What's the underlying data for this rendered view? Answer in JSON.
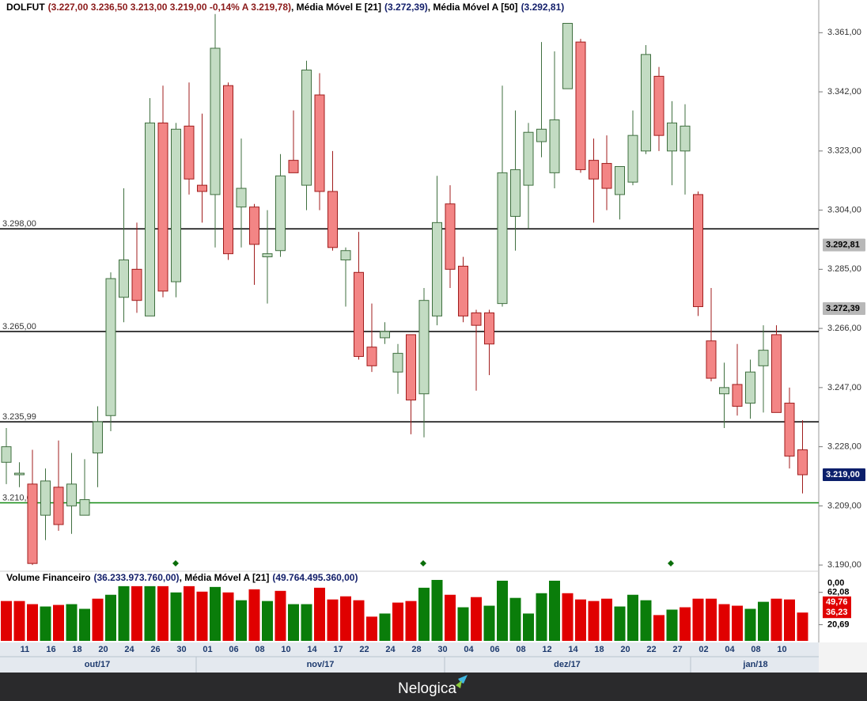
{
  "chart_data": {
    "type": "candlestick",
    "title_parts": [
      {
        "text": "DOLFUT",
        "color": "#000000"
      },
      {
        "text": "(3.227,00  3.236,50  3.213,00  3.219,00  -0,14%  A 3.219,78)",
        "color": "#8b1a1a"
      },
      {
        "text": ", Média Móvel E [21]",
        "color": "#000000"
      },
      {
        "text": "(3.272,39)",
        "color": "#14206b"
      },
      {
        "text": ", Média Móvel A [50]",
        "color": "#000000"
      },
      {
        "text": "(3.292,81)",
        "color": "#14206b"
      }
    ],
    "categories": [
      null,
      "11",
      null,
      "16",
      null,
      "18",
      null,
      "20",
      null,
      "24",
      null,
      "26",
      null,
      "30",
      null,
      "01",
      null,
      "06",
      null,
      "08",
      null,
      "10",
      null,
      "14",
      null,
      "17",
      null,
      "22",
      null,
      "24",
      null,
      "28",
      null,
      "30",
      null,
      "04",
      null,
      "06",
      null,
      "08",
      null,
      "12",
      null,
      "14",
      null,
      "18",
      null,
      "20",
      null,
      "22",
      null,
      "27",
      null,
      "02",
      null,
      "04",
      null,
      "08",
      null,
      "10",
      null,
      null
    ],
    "months": [
      "out/17",
      "nov/17",
      "dez/17",
      "jan/18"
    ],
    "open": [
      3223,
      3219,
      3216,
      3206,
      3215,
      3209,
      3206,
      3226,
      3238,
      3276,
      3285,
      3270,
      3332,
      3281,
      3331,
      3312,
      3309,
      3344,
      3305,
      3305,
      3289,
      3291,
      3320,
      3312,
      3341,
      3310,
      3288,
      3284,
      3260,
      3263,
      3252,
      3264,
      3245,
      3270,
      3306,
      3286,
      3271,
      3271,
      3274,
      3302,
      3312,
      3326,
      3316,
      3343,
      3358,
      3320,
      3319,
      3309,
      3313,
      3323,
      3347,
      3323,
      3323,
      3309,
      3262,
      3245,
      3248,
      3242,
      3254,
      3264,
      3242,
      3227
    ],
    "high": [
      3234,
      3223,
      3227,
      3221,
      3230,
      3226,
      3224,
      3241,
      3284,
      3311,
      3300,
      3340,
      3344,
      3332,
      3345,
      3335,
      3367,
      3345,
      3327,
      3306,
      3304,
      3322,
      3336,
      3352,
      3348,
      3323,
      3292,
      3297,
      3274,
      3268,
      3261,
      3264,
      3279,
      3315,
      3312,
      3289,
      3272,
      3272,
      3344,
      3336,
      3332,
      3358,
      3355,
      3364,
      3359,
      3327,
      3328,
      3318,
      3336,
      3357,
      3350,
      3339,
      3338,
      3310,
      3279,
      3255,
      3261,
      3256,
      3267,
      3267,
      3247,
      3236.5
    ],
    "low": [
      3216,
      3215,
      3190,
      3198,
      3201,
      3200,
      3206,
      3215,
      3233,
      3268,
      3271,
      3270,
      3276,
      3276,
      3309,
      3300,
      3292,
      3288,
      3292,
      3280,
      3274,
      3289,
      3316,
      3304,
      3304,
      3291,
      3273,
      3256,
      3252,
      3261,
      3245,
      3232,
      3231,
      3267,
      3279,
      3268,
      3246,
      3251,
      3273,
      3291,
      3298,
      3321,
      3311,
      3343,
      3316,
      3300,
      3304,
      3301,
      3312,
      3322,
      3323,
      3312,
      3309,
      3270,
      3249,
      3234,
      3238,
      3237,
      3239,
      3239,
      3221,
      3213
    ],
    "close": [
      3228,
      3219.5,
      3190.5,
      3217,
      3203,
      3216,
      3211,
      3236,
      3282,
      3288,
      3275,
      3332,
      3278,
      3330,
      3314,
      3310,
      3356,
      3290,
      3311,
      3293,
      3290,
      3315,
      3316,
      3349,
      3310,
      3292,
      3291,
      3257,
      3254,
      3265,
      3258,
      3243,
      3275,
      3300,
      3285,
      3270,
      3267,
      3261,
      3316,
      3317,
      3329,
      3330,
      3333,
      3364,
      3317,
      3314,
      3311,
      3318,
      3328,
      3354,
      3328,
      3332,
      3331,
      3273,
      3250,
      3247,
      3241,
      3252,
      3259,
      3239,
      3225,
      3219
    ],
    "colors": {
      "up": "#c3dcc3",
      "up_edge": "#3f6f3f",
      "down": "#f38585",
      "down_edge": "#a01c1c"
    },
    "ylim": [
      3188,
      3371.5
    ],
    "yticks": [
      {
        "value": 3361,
        "label": "3.361,00"
      },
      {
        "value": 3342,
        "label": "3.342,00"
      },
      {
        "value": 3323,
        "label": "3.323,00"
      },
      {
        "value": 3304,
        "label": "3.304,00"
      },
      {
        "value": 3285,
        "label": "3.285,00"
      },
      {
        "value": 3266,
        "label": "3.266,00"
      },
      {
        "value": 3247,
        "label": "3.247,00"
      },
      {
        "value": 3228,
        "label": "3.228,00"
      },
      {
        "value": 3209,
        "label": "3.209,00"
      },
      {
        "value": 3190,
        "label": "3.190,00"
      }
    ],
    "hlines": [
      {
        "value": 3298,
        "label": "3.298,00",
        "color": "#000000"
      },
      {
        "value": 3265,
        "label": "3.265,00",
        "color": "#000000"
      },
      {
        "value": 3235.99,
        "label": "3.235,99",
        "color": "#000000"
      },
      {
        "value": 3210,
        "label": "3.210,00",
        "color": "#138a13"
      }
    ],
    "price_tags": [
      {
        "value": 3292.81,
        "label": "3.292,81",
        "bg": "#b8b8b8",
        "color": "#000000"
      },
      {
        "value": 3272.39,
        "label": "3.272,39",
        "bg": "#b8b8b8",
        "color": "#000000"
      },
      {
        "value": 3219,
        "label": "3.219,00",
        "bg": "#0b1f6b",
        "color": "#ffffff"
      }
    ],
    "volume": {
      "title_parts": [
        {
          "text": "Volume Financeiro",
          "color": "#000000"
        },
        {
          "text": "(36.233.973.760,00)",
          "color": "#14206b"
        },
        {
          "text": ", Média Móvel A [21]",
          "color": "#000000"
        },
        {
          "text": "(49.764.495.360,00)",
          "color": "#14206b"
        }
      ],
      "values": [
        51,
        51,
        47,
        44,
        46,
        47,
        41,
        54,
        59,
        70,
        70,
        70,
        70,
        62,
        70,
        63,
        69,
        62,
        52,
        66,
        51,
        64,
        47,
        47,
        68,
        53,
        57,
        52,
        31,
        35,
        49,
        51,
        68,
        78,
        59,
        43,
        56,
        45,
        77,
        55,
        35,
        61,
        77,
        61,
        53,
        51,
        54,
        44,
        59,
        52,
        33,
        40,
        43,
        54,
        54,
        47,
        45,
        41,
        50,
        54,
        53,
        36.23
      ],
      "colors": [
        "#e00000",
        "#e00000",
        "#e00000",
        "#0a7d0a",
        "#e00000",
        "#0a7d0a",
        "#0a7d0a",
        "#e00000",
        "#0a7d0a",
        "#0a7d0a",
        "#e00000",
        "#0a7d0a",
        "#e00000",
        "#0a7d0a",
        "#e00000",
        "#e00000",
        "#0a7d0a",
        "#e00000",
        "#0a7d0a",
        "#e00000",
        "#0a7d0a",
        "#e00000",
        "#0a7d0a",
        "#0a7d0a",
        "#e00000",
        "#e00000",
        "#e00000",
        "#e00000",
        "#e00000",
        "#0a7d0a",
        "#e00000",
        "#e00000",
        "#0a7d0a",
        "#0a7d0a",
        "#e00000",
        "#0a7d0a",
        "#e00000",
        "#0a7d0a",
        "#0a7d0a",
        "#0a7d0a",
        "#0a7d0a",
        "#0a7d0a",
        "#0a7d0a",
        "#e00000",
        "#e00000",
        "#e00000",
        "#e00000",
        "#0a7d0a",
        "#0a7d0a",
        "#0a7d0a",
        "#e00000",
        "#0a7d0a",
        "#e00000",
        "#e00000",
        "#e00000",
        "#e00000",
        "#e00000",
        "#0a7d0a",
        "#0a7d0a",
        "#e00000",
        "#e00000",
        "#e00000"
      ],
      "ylim": [
        0,
        80
      ],
      "yticks": [
        {
          "value": 62.08,
          "label": "62,08"
        },
        {
          "value": 20.69,
          "label": "20,69"
        }
      ],
      "top_label": "0,00",
      "tags": [
        {
          "value": 49.76,
          "label": "49,76"
        },
        {
          "value": 36.23,
          "label": "36,23"
        }
      ]
    }
  },
  "footer": {
    "brand": "Nelogica"
  }
}
